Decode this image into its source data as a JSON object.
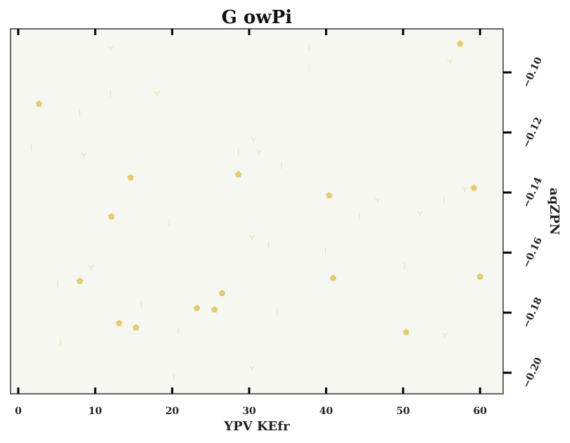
{
  "colors": {
    "background": "#ffffff",
    "plot_area": "#f6f7f1",
    "frame": "#333333",
    "pentagon": "#e2cb72",
    "faint_marker": "#ece3b4"
  },
  "chart_data": {
    "type": "scatter",
    "title": "G owPi",
    "xlabel": "YPV KEfr",
    "ylabel": "aqZPN",
    "xlim": [
      -1,
      63
    ],
    "ylim": [
      -0.207,
      -0.0855
    ],
    "y_axis_side": "right",
    "x_ticks": [
      0,
      10,
      20,
      30,
      40,
      50,
      60
    ],
    "x_tick_labels": [
      "0",
      "10",
      "20",
      "30",
      "40",
      "50",
      "60"
    ],
    "y_ticks": [
      -0.1,
      -0.12,
      -0.14,
      -0.16,
      -0.18,
      -0.2
    ],
    "y_tick_labels": [
      "−0.10",
      "−0.12",
      "−0.14",
      "−0.16",
      "−0.18",
      "−0.20"
    ],
    "grid": false,
    "series": [
      {
        "marker": "pentagon",
        "color": "#e2cb72",
        "points": [
          {
            "x": 57.4,
            "y": -0.0905
          },
          {
            "x": 2.7,
            "y": -0.1105
          },
          {
            "x": 28.6,
            "y": -0.134
          },
          {
            "x": 14.6,
            "y": -0.135
          },
          {
            "x": 59.2,
            "y": -0.1385
          },
          {
            "x": 40.4,
            "y": -0.141
          },
          {
            "x": 12.1,
            "y": -0.148
          },
          {
            "x": 8.0,
            "y": -0.1695
          },
          {
            "x": 40.9,
            "y": -0.1685
          },
          {
            "x": 60.0,
            "y": -0.168
          },
          {
            "x": 26.5,
            "y": -0.1735
          },
          {
            "x": 23.2,
            "y": -0.1785
          },
          {
            "x": 25.5,
            "y": -0.179
          },
          {
            "x": 13.1,
            "y": -0.1835
          },
          {
            "x": 15.3,
            "y": -0.185
          },
          {
            "x": 50.4,
            "y": -0.1865
          }
        ]
      },
      {
        "marker": "faint-tick",
        "color": "#ece3b4",
        "points": [
          {
            "x": 12.0,
            "y": -0.092,
            "m": "tri"
          },
          {
            "x": 37.8,
            "y": -0.0915,
            "m": "vline"
          },
          {
            "x": 56.1,
            "y": -0.0965,
            "m": "tri"
          },
          {
            "x": 37.8,
            "y": -0.0985,
            "m": "vline"
          },
          {
            "x": 12.0,
            "y": -0.107,
            "m": "vline"
          },
          {
            "x": 18.0,
            "y": -0.107,
            "m": "tri"
          },
          {
            "x": 8.0,
            "y": -0.1135,
            "m": "vline"
          },
          {
            "x": 1.7,
            "y": -0.125,
            "m": "vline"
          },
          {
            "x": 8.5,
            "y": -0.1275,
            "m": "tri"
          },
          {
            "x": 30.6,
            "y": -0.1225,
            "m": "tri"
          },
          {
            "x": 28.6,
            "y": -0.1265,
            "m": "vline"
          },
          {
            "x": 31.3,
            "y": -0.1265,
            "m": "tri"
          },
          {
            "x": 34.2,
            "y": -0.131,
            "m": "vline"
          },
          {
            "x": 58.0,
            "y": -0.139,
            "m": "tri"
          },
          {
            "x": 46.7,
            "y": -0.1425,
            "m": "tri"
          },
          {
            "x": 55.3,
            "y": -0.1425,
            "m": "vline"
          },
          {
            "x": 52.2,
            "y": -0.147,
            "m": "tri"
          },
          {
            "x": 44.3,
            "y": -0.148,
            "m": "vline"
          },
          {
            "x": 19.6,
            "y": -0.15,
            "m": "vline"
          },
          {
            "x": 30.4,
            "y": -0.155,
            "m": "tri"
          },
          {
            "x": 32.5,
            "y": -0.1575,
            "m": "vline"
          },
          {
            "x": 39.9,
            "y": -0.1595,
            "m": "vline"
          },
          {
            "x": 9.5,
            "y": -0.165,
            "m": "tri"
          },
          {
            "x": 50.2,
            "y": -0.1645,
            "m": "vline"
          },
          {
            "x": 5.1,
            "y": -0.1705,
            "m": "vline"
          },
          {
            "x": 16.0,
            "y": -0.1775,
            "m": "vline"
          },
          {
            "x": 33.6,
            "y": -0.18,
            "m": "vline"
          },
          {
            "x": 20.8,
            "y": -0.186,
            "m": "vline"
          },
          {
            "x": 55.4,
            "y": -0.1875,
            "m": "tri"
          },
          {
            "x": 5.5,
            "y": -0.19,
            "m": "vline"
          },
          {
            "x": 30.4,
            "y": -0.1985,
            "m": "tri"
          },
          {
            "x": 20.2,
            "y": -0.2015,
            "m": "vline"
          }
        ]
      }
    ]
  }
}
